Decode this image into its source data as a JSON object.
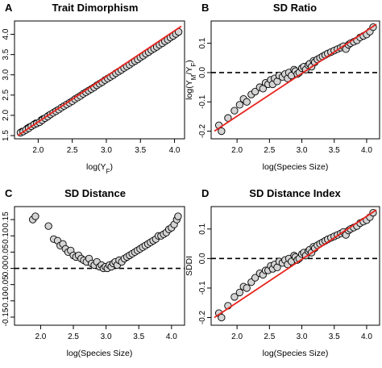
{
  "chart_data": [
    {
      "panel": "A",
      "title": "Trait Dimorphism",
      "type": "scatter",
      "xlabel_main": "log(Y",
      "xlabel_sub": "F",
      "xlabel_end": ")",
      "ylabel_main": "log(Y",
      "ylabel_sub": "M",
      "ylabel_end": ")",
      "xlim": [
        1.7,
        4.1
      ],
      "ylim": [
        1.5,
        4.25
      ],
      "xticks": [
        2.0,
        2.5,
        3.0,
        3.5,
        4.0
      ],
      "yticks": [
        1.5,
        2.0,
        2.5,
        3.0,
        3.5,
        4.0
      ],
      "reference_line": {
        "style": "dashed",
        "color": "#000000",
        "from": [
          1.7,
          1.62
        ],
        "to": [
          4.1,
          4.05
        ]
      },
      "fit_line": {
        "style": "solid",
        "color": "#e8231c",
        "from": [
          1.7,
          1.5
        ],
        "to": [
          4.1,
          4.2
        ]
      },
      "x": [
        1.74,
        1.78,
        1.82,
        1.86,
        1.9,
        1.94,
        1.98,
        2.02,
        2.06,
        2.1,
        2.14,
        2.18,
        2.22,
        2.26,
        2.3,
        2.34,
        2.38,
        2.42,
        2.46,
        2.5,
        2.54,
        2.58,
        2.62,
        2.66,
        2.7,
        2.74,
        2.78,
        2.82,
        2.86,
        2.9,
        2.94,
        2.98,
        3.02,
        3.06,
        3.1,
        3.14,
        3.18,
        3.22,
        3.26,
        3.3,
        3.34,
        3.38,
        3.42,
        3.46,
        3.5,
        3.54,
        3.58,
        3.62,
        3.66,
        3.7,
        3.74,
        3.78,
        3.82,
        3.86,
        3.9,
        3.94,
        3.98,
        4.02,
        4.06
      ],
      "y": [
        1.57,
        1.6,
        1.64,
        1.68,
        1.73,
        1.77,
        1.8,
        1.83,
        1.88,
        1.93,
        1.97,
        2.02,
        2.06,
        2.1,
        2.14,
        2.19,
        2.23,
        2.27,
        2.31,
        2.35,
        2.4,
        2.44,
        2.48,
        2.53,
        2.57,
        2.61,
        2.65,
        2.69,
        2.74,
        2.78,
        2.82,
        2.87,
        2.91,
        2.95,
        2.99,
        3.04,
        3.08,
        3.12,
        3.17,
        3.21,
        3.25,
        3.3,
        3.34,
        3.38,
        3.43,
        3.47,
        3.52,
        3.56,
        3.61,
        3.65,
        3.69,
        3.74,
        3.78,
        3.83,
        3.87,
        3.92,
        3.96,
        4.01,
        4.06
      ]
    },
    {
      "panel": "B",
      "title": "SD Ratio",
      "type": "scatter",
      "xlabel": "log(Species Size)",
      "ylabel_main": "log(Y",
      "ylabel_sub1": "M",
      "ylabel_mid": "/Y",
      "ylabel_sub2": "F",
      "ylabel_end": ")",
      "xlim": [
        1.65,
        4.15
      ],
      "ylim": [
        -0.215,
        0.165
      ],
      "xticks": [
        2.0,
        2.5,
        3.0,
        3.5,
        4.0
      ],
      "yticks": [
        -0.2,
        -0.1,
        0.0,
        0.1
      ],
      "reference_line": {
        "style": "dashed",
        "color": "#000000",
        "y": 0.0
      },
      "fit_line": {
        "style": "solid",
        "color": "#e8231c",
        "from": [
          1.65,
          -0.2
        ],
        "to": [
          4.15,
          0.165
        ]
      },
      "x": [
        1.72,
        1.76,
        1.86,
        1.96,
        2.04,
        2.1,
        2.15,
        2.22,
        2.28,
        2.35,
        2.4,
        2.44,
        2.48,
        2.52,
        2.55,
        2.58,
        2.62,
        2.65,
        2.7,
        2.74,
        2.78,
        2.8,
        2.84,
        2.88,
        2.9,
        2.93,
        2.96,
        3.0,
        3.03,
        3.06,
        3.1,
        3.12,
        3.15,
        3.18,
        3.2,
        3.24,
        3.28,
        3.32,
        3.36,
        3.4,
        3.45,
        3.5,
        3.55,
        3.6,
        3.64,
        3.68,
        3.72,
        3.75,
        3.8,
        3.85,
        3.9,
        3.95,
        4.0,
        4.05,
        4.1
      ],
      "y": [
        -0.18,
        -0.2,
        -0.155,
        -0.13,
        -0.11,
        -0.09,
        -0.1,
        -0.075,
        -0.065,
        -0.05,
        -0.055,
        -0.035,
        -0.04,
        -0.025,
        -0.04,
        -0.02,
        -0.03,
        -0.01,
        -0.015,
        -0.005,
        -0.02,
        0.0,
        -0.01,
        0.01,
        0.005,
        -0.005,
        0.0,
        0.015,
        0.02,
        0.01,
        0.025,
        0.03,
        0.02,
        0.04,
        0.035,
        0.045,
        0.05,
        0.055,
        0.06,
        0.065,
        0.07,
        0.075,
        0.08,
        0.085,
        0.09,
        0.08,
        0.095,
        0.1,
        0.105,
        0.11,
        0.12,
        0.125,
        0.13,
        0.14,
        0.155
      ]
    },
    {
      "panel": "C",
      "title": "SD Distance",
      "type": "scatter",
      "xlabel": "log(Species Size)",
      "ylabel_main": "D",
      "ylabel_sub": "SD",
      "ylabel_end": "",
      "xlim": [
        1.65,
        4.15
      ],
      "ylim": [
        -0.165,
        0.18
      ],
      "xticks": [
        2.0,
        2.5,
        3.0,
        3.5,
        4.0
      ],
      "yticks": [
        -0.15,
        -0.1,
        -0.05,
        0.0,
        0.05,
        0.1,
        0.15
      ],
      "reference_line": {
        "style": "dashed",
        "color": "#000000",
        "y": 0.0
      },
      "x": [
        1.88,
        1.92,
        2.12,
        2.2,
        2.26,
        2.3,
        2.34,
        2.38,
        2.42,
        2.46,
        2.5,
        2.54,
        2.58,
        2.62,
        2.66,
        2.7,
        2.74,
        2.78,
        2.82,
        2.86,
        2.9,
        2.93,
        2.96,
        2.99,
        3.02,
        3.05,
        3.08,
        3.11,
        3.14,
        3.17,
        3.2,
        3.24,
        3.28,
        3.32,
        3.36,
        3.4,
        3.44,
        3.48,
        3.52,
        3.56,
        3.6,
        3.64,
        3.68,
        3.72,
        3.76,
        3.8,
        3.84,
        3.88,
        3.92,
        3.96,
        4.0,
        4.04,
        4.08,
        4.1
      ],
      "y": [
        0.15,
        0.16,
        0.13,
        0.09,
        0.085,
        0.07,
        0.075,
        0.06,
        0.05,
        0.055,
        0.04,
        0.035,
        0.04,
        0.03,
        0.025,
        0.02,
        0.03,
        0.015,
        0.01,
        0.02,
        0.005,
        0.01,
        0.0,
        0.005,
        0.0,
        0.01,
        0.005,
        0.015,
        0.02,
        0.01,
        0.025,
        0.02,
        0.03,
        0.035,
        0.04,
        0.045,
        0.05,
        0.055,
        0.06,
        0.065,
        0.07,
        0.075,
        0.08,
        0.085,
        0.09,
        0.1,
        0.1,
        0.105,
        0.11,
        0.12,
        0.125,
        0.135,
        0.15,
        0.16
      ]
    },
    {
      "panel": "D",
      "title": "SD Distance Index",
      "type": "scatter",
      "xlabel": "log(Species Size)",
      "ylabel": "SDDI",
      "xlim": [
        1.65,
        4.15
      ],
      "ylim": [
        -0.215,
        0.165
      ],
      "xticks": [
        2.0,
        2.5,
        3.0,
        3.5,
        4.0
      ],
      "yticks": [
        -0.2,
        -0.1,
        0.0,
        0.1
      ],
      "reference_line": {
        "style": "dashed",
        "color": "#000000",
        "y": 0.0
      },
      "fit_line": {
        "style": "solid",
        "color": "#e8231c",
        "from": [
          1.65,
          -0.2
        ],
        "to": [
          4.15,
          0.165
        ]
      },
      "x": [
        1.72,
        1.76,
        1.86,
        1.96,
        2.04,
        2.1,
        2.15,
        2.22,
        2.28,
        2.35,
        2.4,
        2.44,
        2.48,
        2.52,
        2.55,
        2.58,
        2.62,
        2.65,
        2.7,
        2.74,
        2.78,
        2.8,
        2.84,
        2.88,
        2.9,
        2.93,
        2.96,
        3.0,
        3.03,
        3.06,
        3.1,
        3.12,
        3.15,
        3.18,
        3.2,
        3.24,
        3.28,
        3.32,
        3.36,
        3.4,
        3.45,
        3.5,
        3.55,
        3.6,
        3.64,
        3.68,
        3.72,
        3.75,
        3.8,
        3.85,
        3.9,
        3.95,
        4.0,
        4.05,
        4.1
      ],
      "y": [
        -0.185,
        -0.2,
        -0.16,
        -0.13,
        -0.115,
        -0.095,
        -0.1,
        -0.08,
        -0.065,
        -0.05,
        -0.055,
        -0.04,
        -0.04,
        -0.025,
        -0.035,
        -0.02,
        -0.03,
        -0.01,
        -0.015,
        -0.005,
        -0.02,
        0.0,
        -0.01,
        0.01,
        0.005,
        -0.005,
        0.0,
        0.015,
        0.02,
        0.01,
        0.025,
        0.03,
        0.02,
        0.04,
        0.035,
        0.045,
        0.05,
        0.055,
        0.06,
        0.065,
        0.07,
        0.075,
        0.08,
        0.085,
        0.09,
        0.08,
        0.095,
        0.1,
        0.105,
        0.11,
        0.12,
        0.125,
        0.13,
        0.14,
        0.155
      ]
    }
  ],
  "style": {
    "point_fill": "#d4d4d4",
    "point_stroke": "#000000",
    "fit_color": "#e8231c",
    "dash_color": "#000000",
    "frame_color": "#000000"
  }
}
